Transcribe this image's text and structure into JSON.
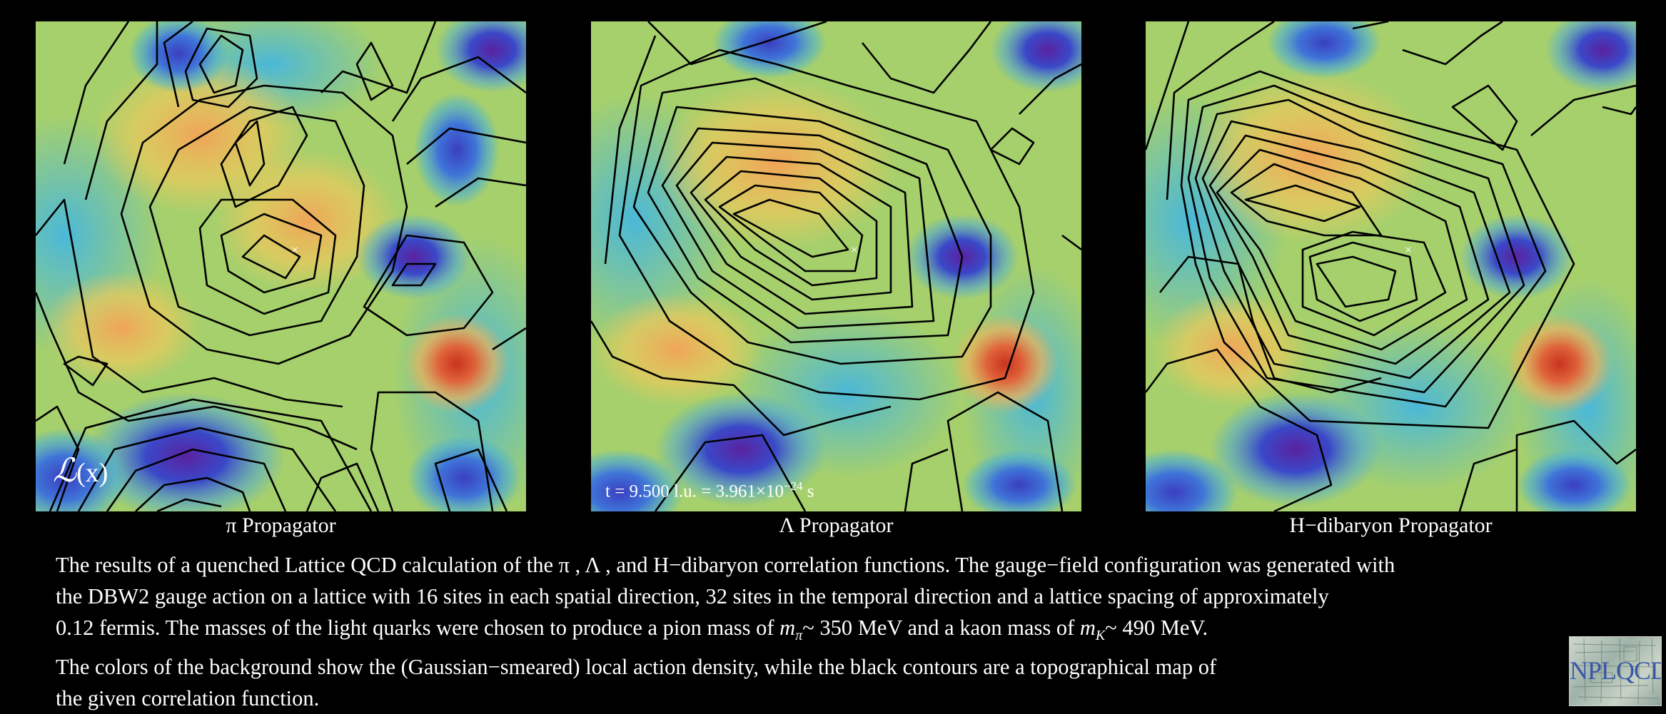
{
  "panels": [
    {
      "label": "π Propagator"
    },
    {
      "label": "Λ Propagator"
    },
    {
      "label": "H−dibaryon  Propagator"
    }
  ],
  "overlay": {
    "lagrangian_symbol": "ℒ",
    "lagrangian_arg": "(x)",
    "time_label": "t = 9.500 l.u. = 3.961×10",
    "time_exponent": "−24",
    "time_unit": " s",
    "marker": "×"
  },
  "caption": {
    "line1": "The results of a quenched Lattice QCD calculation of the π , Λ , and H−dibaryon correlation functions. The gauge−field configuration was generated with",
    "line2": "the DBW2 gauge action on a lattice with 16 sites in each spatial direction, 32 sites in the temporal direction and a lattice spacing of approximately",
    "line3a": "0.12 fermis.  The masses of the light quarks were chosen to produce a pion mass of ",
    "m_pi_symbol": "m",
    "m_pi_sub": "π",
    "line3b": "~ 350 MeV and a kaon mass of ",
    "m_k_symbol": "m",
    "m_k_sub": "K",
    "line3c": "~ 490 MeV.",
    "line4": "The colors of the background show the (Gaussian−smeared) local action density, while the black contours are a topographical map of",
    "line5": "the given correlation function."
  },
  "logo": {
    "text": "NPLQCD"
  },
  "colors": {
    "blue": "#3b4fc8",
    "green": "#a9d46a",
    "yellow": "#e8c95a",
    "orange": "#eda05a",
    "red": "#c83a25",
    "purple": "#6a2aa8"
  }
}
